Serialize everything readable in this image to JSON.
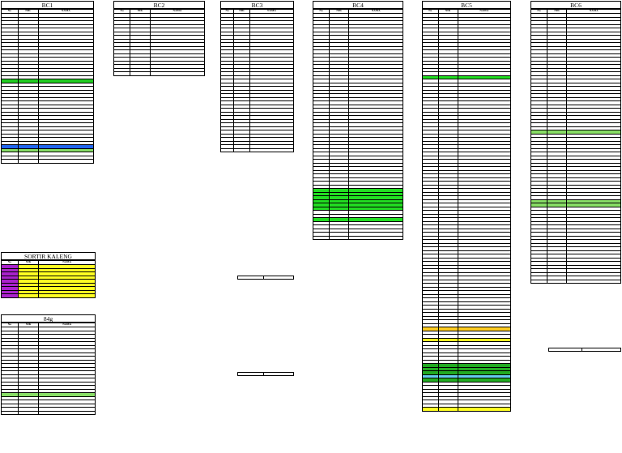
{
  "headers": {
    "no": "No",
    "nik": "NIK",
    "nama": "NAMA"
  },
  "blocks": [
    {
      "id": "bc1",
      "title": "BC1",
      "rows": 41,
      "highlights": {
        "18": "#22cc22",
        "36": "#2266ee",
        "37": "#88dd66"
      }
    },
    {
      "id": "sortir",
      "title": "SORTIR KALENG",
      "rows": 9,
      "no_color": "#aa22cc",
      "row_color": "#ffff22"
    },
    {
      "id": "g84",
      "title": "84g",
      "rows": 24,
      "highlights": {
        "18": "#88dd66"
      }
    },
    {
      "id": "bc2",
      "title": "BC2",
      "rows": 17,
      "highlights": {}
    },
    {
      "id": "bc3",
      "title": "BC3",
      "rows": 38,
      "highlights": {}
    },
    {
      "id": "bc4",
      "title": "BC4",
      "rows": 62,
      "highlights": {
        "48": "#22dd22",
        "49": "#22dd22",
        "50": "#22dd22",
        "51": "#22dd22",
        "52": "#22dd22",
        "53": "#22dd22",
        "56": "#22dd22"
      }
    },
    {
      "id": "bc5",
      "title": "BC5",
      "rows": 109,
      "highlights": {
        "17": "#22dd22",
        "86": "#ffcc22",
        "89": "#ffff22",
        "96": "#22aa22",
        "97": "#22aa22",
        "98": "#22aa22",
        "99": "#66ccee",
        "100": "#22aa22",
        "108": "#ffff22"
      }
    },
    {
      "id": "bc6",
      "title": "BC6",
      "rows": 74,
      "highlights": {
        "32": "#88dd66",
        "51": "#88dd66",
        "52": "#88dd66"
      }
    }
  ]
}
